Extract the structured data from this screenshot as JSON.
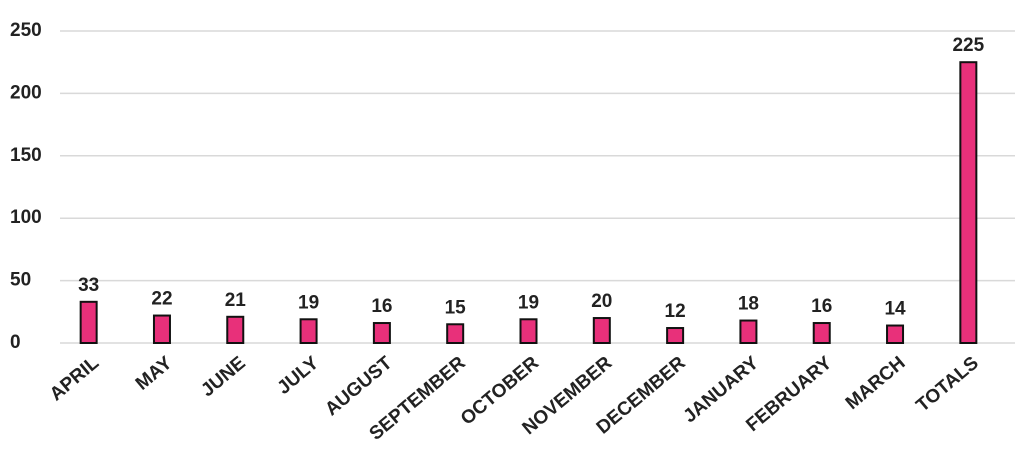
{
  "chart_data": {
    "type": "bar",
    "categories": [
      "APRIL",
      "MAY",
      "JUNE",
      "JULY",
      "AUGUST",
      "SEPTEMBER",
      "OCTOBER",
      "NOVEMBER",
      "DECEMBER",
      "JANUARY",
      "FEBRUARY",
      "MARCH",
      "TOTALS"
    ],
    "values": [
      33,
      22,
      21,
      19,
      16,
      15,
      19,
      20,
      12,
      18,
      16,
      14,
      225
    ],
    "color": "#e8307a",
    "ylim": [
      0,
      250
    ],
    "yticks": [
      0,
      50,
      100,
      150,
      200,
      250
    ],
    "grid": true
  }
}
